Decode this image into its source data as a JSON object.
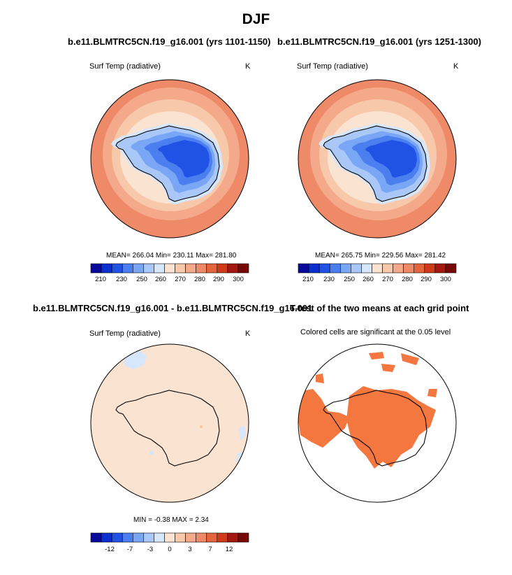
{
  "title": "DJF",
  "panels": [
    {
      "title": "b.e11.BLMTRC5CN.f19_g16.001 (yrs 1101-1150)",
      "variable": "Surf Temp (radiative)",
      "units": "K",
      "stats": "MEAN= 266.04  Min= 230.11  Max= 281.80",
      "colorbar_labels": [
        "210",
        "230",
        "250",
        "260",
        "270",
        "280",
        "290",
        "300"
      ]
    },
    {
      "title": "b.e11.BLMTRC5CN.f19_g16.001 (yrs 1251-1300)",
      "variable": "Surf Temp (radiative)",
      "units": "K",
      "stats": "MEAN= 265.75  Min= 229.56  Max= 281.42",
      "colorbar_labels": [
        "210",
        "230",
        "250",
        "260",
        "270",
        "280",
        "290",
        "300"
      ]
    },
    {
      "title": "b.e11.BLMTRC5CN.f19_g16.001 - b.e11.BLMTRC5CN.f19_g16.001",
      "variable": "Surf Temp (radiative)",
      "units": "K",
      "stats": "MIN =  -0.38 MAX =   2.34",
      "colorbar_labels": [
        "-12",
        "-7",
        "-3",
        "0",
        "3",
        "7",
        "12"
      ]
    },
    {
      "title": "T-test of the two means at each grid point",
      "subtitle": "Colored cells are significant at the 0.05 level"
    }
  ],
  "colors": {
    "abs_scale": [
      "#08089a",
      "#0c2fd0",
      "#2152e6",
      "#4b7ff0",
      "#79a6f5",
      "#a9c8f7",
      "#d6e6fb",
      "#fbe3d1",
      "#f8c8ab",
      "#f4a98a",
      "#ee8a68",
      "#e4653d",
      "#cf3b1a",
      "#a51810",
      "#760808"
    ],
    "diff_scale": [
      "#08089a",
      "#0c2fd0",
      "#2152e6",
      "#4b7ff0",
      "#79a6f5",
      "#a9c8f7",
      "#d6e6fb",
      "#fbe3d1",
      "#f8c8ab",
      "#f4a98a",
      "#ee8a68",
      "#e4653d",
      "#cf3b1a",
      "#a51810",
      "#760808"
    ],
    "significance": "#f4773f"
  },
  "chart_data": [
    {
      "type": "heatmap",
      "projection": "south-polar-stereographic",
      "title": "b.e11.BLMTRC5CN.f19_g16.001 (yrs 1101-1150)",
      "variable": "Surf Temp (radiative)",
      "units": "K",
      "mean": 266.04,
      "min": 230.11,
      "max": 281.8,
      "colorbar_levels": [
        210,
        220,
        230,
        240,
        250,
        255,
        260,
        265,
        270,
        275,
        280,
        285,
        290,
        295,
        300
      ]
    },
    {
      "type": "heatmap",
      "projection": "south-polar-stereographic",
      "title": "b.e11.BLMTRC5CN.f19_g16.001 (yrs 1251-1300)",
      "variable": "Surf Temp (radiative)",
      "units": "K",
      "mean": 265.75,
      "min": 229.56,
      "max": 281.42,
      "colorbar_levels": [
        210,
        220,
        230,
        240,
        250,
        255,
        260,
        265,
        270,
        275,
        280,
        285,
        290,
        295,
        300
      ]
    },
    {
      "type": "heatmap",
      "projection": "south-polar-stereographic",
      "title": "b.e11.BLMTRC5CN.f19_g16.001 - b.e11.BLMTRC5CN.f19_g16.001",
      "variable": "Surf Temp (radiative)",
      "units": "K",
      "min": -0.38,
      "max": 2.34,
      "colorbar_levels": [
        -12,
        -9,
        -7,
        -5,
        -3,
        -1,
        0,
        1,
        3,
        5,
        7,
        9,
        12
      ]
    },
    {
      "type": "heatmap",
      "projection": "south-polar-stereographic",
      "title": "T-test of the two means at each grid point",
      "subtitle": "Colored cells are significant at the 0.05 level",
      "significance_level": 0.05
    }
  ]
}
